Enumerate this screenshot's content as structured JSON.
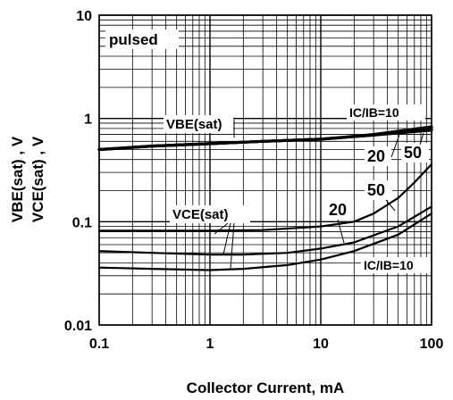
{
  "chart_data": {
    "type": "line",
    "title": "",
    "xlabel": "Collector Current, mA",
    "ylabel": "VBE(sat) , V\nVCE(sat) , V",
    "ylabel_lines": [
      "VBE(sat) , V",
      "VCE(sat) , V"
    ],
    "x_scale": "log",
    "y_scale": "log",
    "xlim": [
      0.1,
      100
    ],
    "ylim": [
      0.01,
      10
    ],
    "grid": true,
    "x_ticks": [
      {
        "value": 0.1,
        "label": "0.1"
      },
      {
        "value": 1,
        "label": "1"
      },
      {
        "value": 10,
        "label": "10"
      },
      {
        "value": 100,
        "label": "100"
      }
    ],
    "y_ticks": [
      {
        "value": 0.01,
        "label": "0.01"
      },
      {
        "value": 0.1,
        "label": "0.1"
      },
      {
        "value": 1,
        "label": "1"
      },
      {
        "value": 10,
        "label": "10"
      }
    ],
    "series": [
      {
        "group": "VBE(sat)",
        "ratio": "IC/IB=10",
        "x": [
          0.1,
          0.3,
          1,
          3,
          10,
          30,
          100
        ],
        "y": [
          0.5,
          0.54,
          0.57,
          0.6,
          0.63,
          0.69,
          0.77
        ]
      },
      {
        "group": "VBE(sat)",
        "ratio": "20",
        "x": [
          0.1,
          0.3,
          1,
          3,
          10,
          30,
          100
        ],
        "y": [
          0.5,
          0.54,
          0.57,
          0.6,
          0.63,
          0.69,
          0.8
        ]
      },
      {
        "group": "VBE(sat)",
        "ratio": "50",
        "x": [
          0.1,
          0.3,
          1,
          3,
          10,
          30,
          100
        ],
        "y": [
          0.5,
          0.54,
          0.57,
          0.6,
          0.63,
          0.7,
          0.83
        ]
      },
      {
        "group": "VCE(sat)",
        "ratio": "50",
        "x": [
          0.1,
          0.3,
          1,
          3,
          10,
          20,
          30,
          50,
          70,
          100
        ],
        "y": [
          0.082,
          0.082,
          0.082,
          0.083,
          0.09,
          0.1,
          0.12,
          0.17,
          0.24,
          0.36
        ]
      },
      {
        "group": "VCE(sat)",
        "ratio": "20",
        "x": [
          0.1,
          0.3,
          1,
          2,
          5,
          10,
          20,
          50,
          100
        ],
        "y": [
          0.052,
          0.05,
          0.048,
          0.048,
          0.05,
          0.055,
          0.063,
          0.09,
          0.14
        ]
      },
      {
        "group": "VCE(sat)",
        "ratio": "IC/IB=10",
        "x": [
          0.1,
          0.3,
          1,
          2,
          5,
          10,
          20,
          50,
          100
        ],
        "y": [
          0.036,
          0.035,
          0.034,
          0.035,
          0.038,
          0.043,
          0.052,
          0.075,
          0.12
        ]
      }
    ],
    "annotations": [
      {
        "text": "pulsed"
      },
      {
        "text": "VBE(sat)"
      },
      {
        "text": "IC/IB=10"
      },
      {
        "text": "20"
      },
      {
        "text": "50"
      },
      {
        "text": "50"
      },
      {
        "text": "20"
      },
      {
        "text": "VCE(sat)"
      },
      {
        "text": "IC/IB=10"
      }
    ]
  }
}
